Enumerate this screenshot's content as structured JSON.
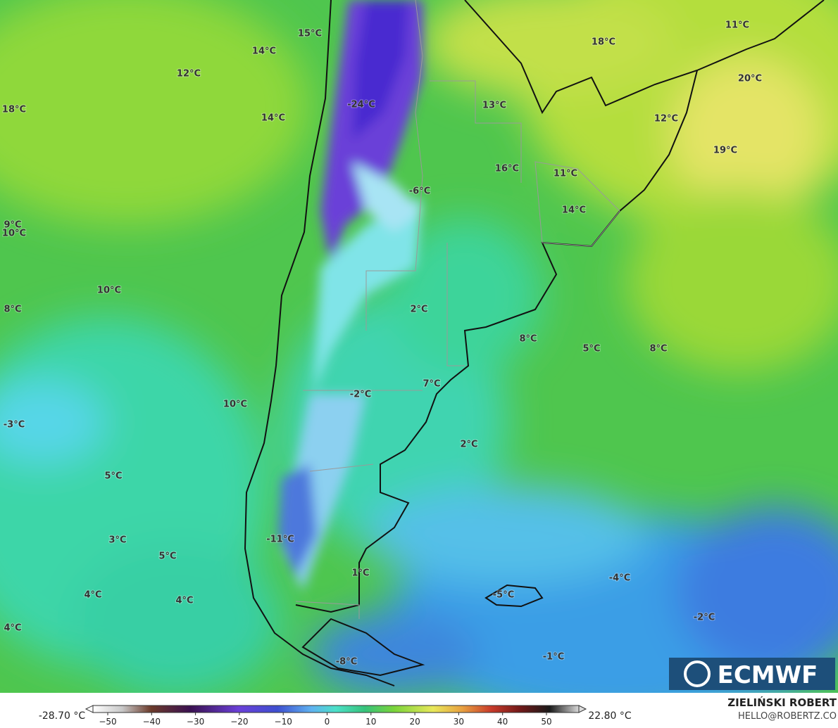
{
  "map": {
    "labels": [
      "15°C",
      "14°C",
      "12°C",
      "18°C",
      "14°C",
      "-24°C",
      "13°C",
      "18°C",
      "11°C",
      "20°C",
      "12°C",
      "19°C",
      "16°C",
      "11°C",
      "14°C",
      "-6°C",
      "9°C",
      "10°C",
      "10°C",
      "8°C",
      "2°C",
      "8°C",
      "5°C",
      "8°C",
      "7°C",
      "-2°C",
      "10°C",
      "-3°C",
      "2°C",
      "5°C",
      "3°C",
      "5°C",
      "-11°C",
      "1°C",
      "-4°C",
      "4°C",
      "4°C",
      "-5°C",
      "-2°C",
      "4°C",
      "-8°C",
      "-1°C"
    ]
  },
  "colorbar": {
    "min_label": "-28.70 °C",
    "max_label": "22.80 °C",
    "ticks": [
      "−50",
      "−40",
      "−30",
      "−20",
      "−10",
      "0",
      "10",
      "20",
      "30",
      "40",
      "50"
    ]
  },
  "logo": "ECMWF",
  "credit": {
    "author": "ZIELIŃSKI ROBERT",
    "contact": "HELLO@ROBERTZ.CO"
  }
}
